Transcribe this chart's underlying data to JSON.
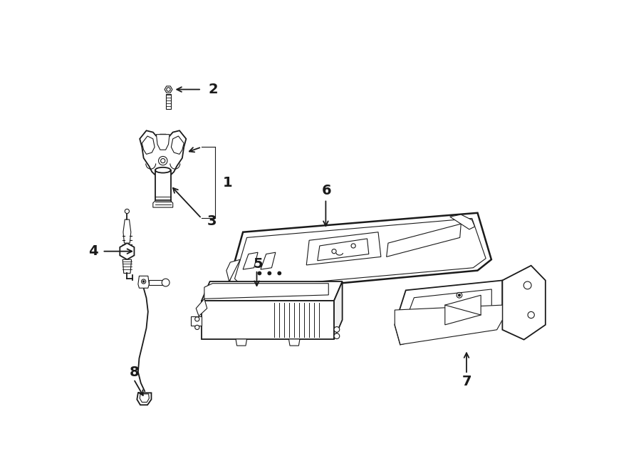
{
  "bg_color": "#ffffff",
  "line_color": "#1a1a1a",
  "fig_width": 9.0,
  "fig_height": 6.61,
  "dpi": 100,
  "label_fontsize": 14,
  "lw_thin": 0.8,
  "lw_med": 1.3,
  "lw_thick": 1.8
}
